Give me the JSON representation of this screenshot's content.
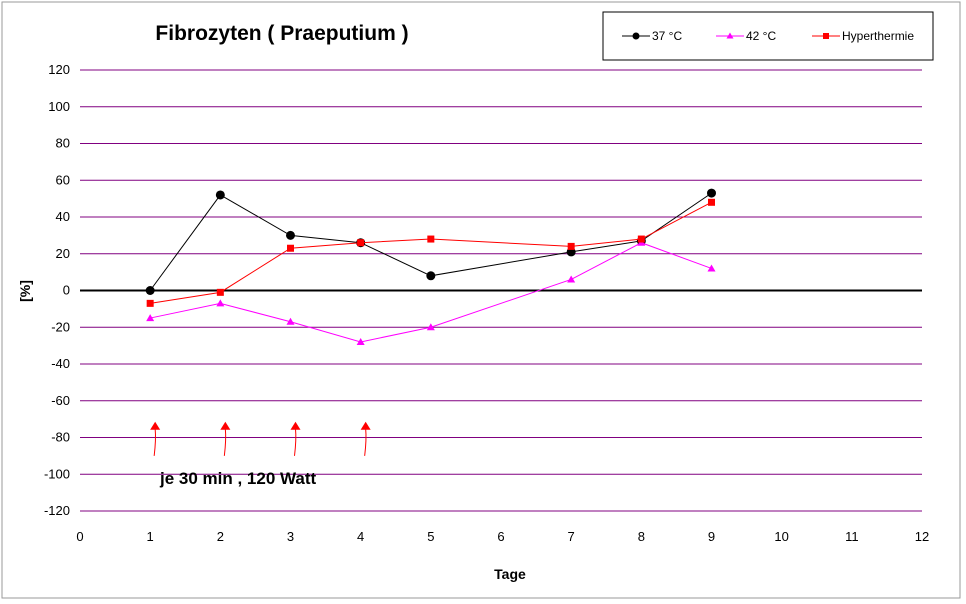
{
  "chart_data": {
    "type": "line",
    "title": "Fibrozyten ( Praeputium )",
    "xlabel": "Tage",
    "ylabel": "[%]",
    "xlim": [
      0,
      12
    ],
    "ylim": [
      -120,
      120
    ],
    "x_ticks": [
      "0",
      "1",
      "2",
      "3",
      "4",
      "5",
      "6",
      "7",
      "8",
      "9",
      "10",
      "11",
      "12"
    ],
    "y_ticks": [
      "120",
      "100",
      "80",
      "60",
      "40",
      "20",
      "0",
      "-20",
      "-40",
      "-60",
      "-80",
      "-100",
      "-120"
    ],
    "grid": "horizontal",
    "legend_position": "top-right",
    "series": [
      {
        "name": "37 °C",
        "color": "#000000",
        "marker": "circle",
        "x": [
          1,
          2,
          3,
          4,
          5,
          7,
          8,
          9
        ],
        "y": [
          0,
          52,
          30,
          26,
          8,
          21,
          27,
          53
        ]
      },
      {
        "name": "42 °C",
        "color": "#ff00ff",
        "marker": "triangle",
        "x": [
          1,
          2,
          3,
          4,
          5,
          7,
          8,
          9
        ],
        "y": [
          -15,
          -7,
          -17,
          -28,
          -20,
          6,
          26,
          12
        ]
      },
      {
        "name": "Hyperthermie",
        "color": "#ff0000",
        "marker": "square",
        "x": [
          1,
          2,
          3,
          4,
          5,
          7,
          8,
          9
        ],
        "y": [
          -7,
          -1,
          23,
          26,
          28,
          24,
          28,
          48
        ]
      }
    ],
    "annotations": {
      "text": "je 30 min , 120 Watt",
      "arrow_color": "#ff0000",
      "arrows_at_x": [
        1,
        2,
        3,
        4
      ],
      "arrow_tip_y": -72,
      "arrow_base_y": -90
    }
  }
}
